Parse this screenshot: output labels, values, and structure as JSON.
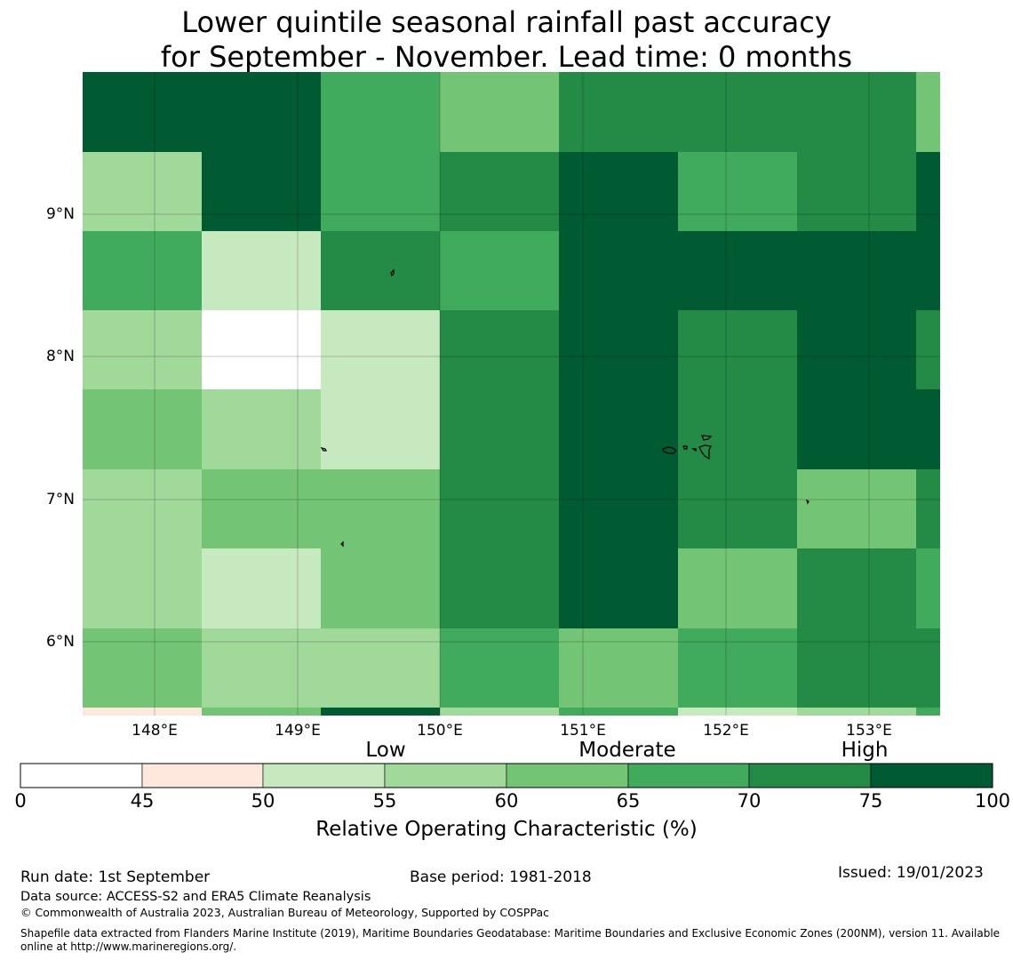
{
  "title": {
    "line1": "Lower quintile seasonal rainfall past accuracy",
    "line2": "for September - November. Lead time: 0 months"
  },
  "map": {
    "lat_labels": [
      "9°N",
      "8°N",
      "7°N",
      "6°N"
    ],
    "lon_labels": [
      "148°E",
      "149°E",
      "150°E",
      "151°E",
      "152°E",
      "153°E"
    ],
    "grid_rows_top_to_bottom": [
      [
        77.5,
        77.5,
        67.5,
        62.5,
        72.5,
        72.5,
        72.5,
        62.5
      ],
      [
        57.5,
        77.5,
        67.5,
        72.5,
        77.5,
        67.5,
        72.5,
        77.5
      ],
      [
        67.5,
        52.5,
        72.5,
        67.5,
        77.5,
        77.5,
        77.5,
        77.5
      ],
      [
        57.5,
        40.0,
        52.5,
        72.5,
        77.5,
        72.5,
        77.5,
        72.5
      ],
      [
        62.5,
        57.5,
        52.5,
        72.5,
        77.5,
        72.5,
        77.5,
        77.5
      ],
      [
        57.5,
        62.5,
        62.5,
        72.5,
        77.5,
        72.5,
        62.5,
        72.5
      ],
      [
        57.5,
        52.5,
        62.5,
        72.5,
        77.5,
        62.5,
        72.5,
        67.5
      ],
      [
        62.5,
        57.5,
        57.5,
        67.5,
        62.5,
        67.5,
        72.5,
        72.5
      ],
      [
        47.5,
        62.5,
        77.5,
        57.5,
        67.5,
        52.5,
        57.5,
        67.5
      ]
    ]
  },
  "legend": {
    "categories": [
      "Low",
      "Moderate",
      "High"
    ],
    "ticks": [
      "0",
      "45",
      "50",
      "55",
      "60",
      "65",
      "70",
      "75",
      "100"
    ],
    "colors": [
      "#ffffff",
      "#fee8de",
      "#c7e9c0",
      "#a1d99b",
      "#74c476",
      "#41ab5d",
      "#238b45",
      "#005a32"
    ],
    "label": "Relative Operating Characteristic (%)"
  },
  "footer": {
    "run_date": "Run date: 1st September",
    "base_period": "Base period: 1981-2018",
    "issued": "Issued: 19/01/2023",
    "data_source": "Data source: ACCESS-S2 and ERA5 Climate Reanalysis",
    "copyright": "© Commonwealth of Australia 2023, Australian Bureau of Meteorology, Supported by COSPPac",
    "shapefile": "Shapefile data extracted from Flanders Marine Institute (2019), Maritime Boundaries Geodatabase: Maritime Boundaries and Exclusive Economic Zones (200NM), version 11. Available online at http://www.marineregions.org/."
  }
}
